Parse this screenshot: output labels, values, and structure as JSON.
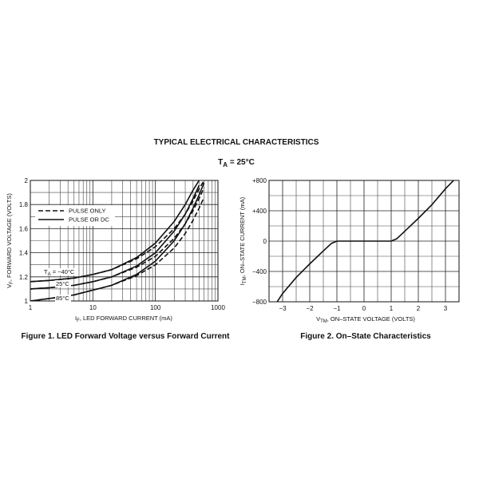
{
  "header": {
    "title": "TYPICAL ELECTRICAL CHARACTERISTICS",
    "condition": {
      "main": "T",
      "sub": "A",
      "rest": " = 25°C"
    }
  },
  "chart_data": [
    {
      "type": "line",
      "xscale": "log",
      "title": "Figure 1. LED Forward Voltage versus Forward Current",
      "xlabel": {
        "main": "I",
        "sub": "F",
        "rest": ", LED FORWARD CURRENT (mA)"
      },
      "ylabel": {
        "main": "V",
        "sub": "F",
        "rest": ", FORWARD VOLTAGE (VOLTS)"
      },
      "xlim": [
        1,
        1000
      ],
      "xticks": [
        1,
        10,
        100,
        1000
      ],
      "minor_xticks": [
        2,
        3,
        4,
        5,
        6,
        7,
        8,
        9,
        20,
        30,
        40,
        50,
        60,
        70,
        80,
        90,
        200,
        300,
        400,
        500,
        600,
        700,
        800,
        900
      ],
      "ylim": [
        1,
        2
      ],
      "yticks": [
        1,
        1.2,
        1.4,
        1.6,
        1.8,
        2
      ],
      "minor_yticks": [
        1.1,
        1.3,
        1.5,
        1.7,
        1.9
      ],
      "grid": true,
      "legend": [
        {
          "name": "PULSE ONLY",
          "dashed": true
        },
        {
          "name": "PULSE OR DC",
          "dashed": false
        }
      ],
      "annotations": [
        {
          "main": "T",
          "sub": "A",
          "rest": " = −40°C"
        },
        {
          "main": "25°C"
        },
        {
          "main": "85°C"
        }
      ],
      "x": [
        1,
        2,
        5,
        10,
        20,
        50,
        100,
        200,
        300,
        400,
        500,
        600
      ],
      "series": [
        {
          "color": "#111111",
          "dashed": false,
          "values": [
            1.16,
            1.17,
            1.19,
            1.22,
            1.26,
            1.36,
            1.48,
            1.66,
            1.8,
            1.92,
            2.0,
            null
          ]
        },
        {
          "color": "#111111",
          "dashed": true,
          "values": [
            1.16,
            1.17,
            1.19,
            1.22,
            1.26,
            1.35,
            1.45,
            1.6,
            1.72,
            1.83,
            1.93,
            2.0
          ]
        },
        {
          "color": "#111111",
          "dashed": false,
          "values": [
            1.1,
            1.11,
            1.13,
            1.16,
            1.2,
            1.29,
            1.4,
            1.58,
            1.72,
            1.85,
            1.96,
            null
          ]
        },
        {
          "color": "#111111",
          "dashed": true,
          "values": [
            1.1,
            1.11,
            1.13,
            1.16,
            1.2,
            1.28,
            1.37,
            1.52,
            1.64,
            1.75,
            1.85,
            1.94
          ]
        },
        {
          "color": "#111111",
          "dashed": false,
          "values": [
            1.0,
            1.02,
            1.05,
            1.09,
            1.13,
            1.22,
            1.33,
            1.5,
            1.64,
            1.77,
            1.88,
            1.98
          ]
        },
        {
          "color": "#111111",
          "dashed": true,
          "values": [
            1.0,
            1.02,
            1.05,
            1.09,
            1.13,
            1.21,
            1.3,
            1.44,
            1.56,
            1.67,
            1.77,
            1.86
          ]
        }
      ]
    },
    {
      "type": "line",
      "title": "Figure 2. On–State Characteristics",
      "xlabel": {
        "main": "V",
        "sub": "TM",
        "rest": ", ON–STATE VOLTAGE (VOLTS)"
      },
      "ylabel": {
        "main": "I",
        "sub": "TM",
        "rest": ", ON–STATE CURRENT (mA)"
      },
      "xlim": [
        -3.5,
        3.5
      ],
      "xticks": [
        {
          "value": -3,
          "label": "−3"
        },
        {
          "value": -2,
          "label": "−2"
        },
        {
          "value": -1,
          "label": "−1"
        },
        0,
        1,
        2,
        3
      ],
      "minor_xticks": [
        -2.5,
        -1.5,
        -0.5,
        0.5,
        1.5,
        2.5
      ],
      "ylim": [
        -800,
        800
      ],
      "yticks": [
        {
          "value": -800,
          "label": "−800"
        },
        {
          "value": -400,
          "label": "−400"
        },
        0,
        {
          "value": 400,
          "label": "+400"
        },
        {
          "value": 800,
          "label": "+800"
        }
      ],
      "minor_yticks": [
        -600,
        -200,
        200,
        600
      ],
      "grid": true,
      "x": [
        -3.2,
        -3,
        -2.5,
        -2,
        -1.5,
        -1.2,
        -1,
        0,
        1,
        1.2,
        1.5,
        2,
        2.5,
        3,
        3.3
      ],
      "series": [
        {
          "color": "#111111",
          "dashed": false,
          "values": [
            -800,
            -690,
            -480,
            -300,
            -130,
            -30,
            0,
            0,
            0,
            30,
            130,
            300,
            480,
            690,
            800
          ]
        }
      ]
    }
  ]
}
